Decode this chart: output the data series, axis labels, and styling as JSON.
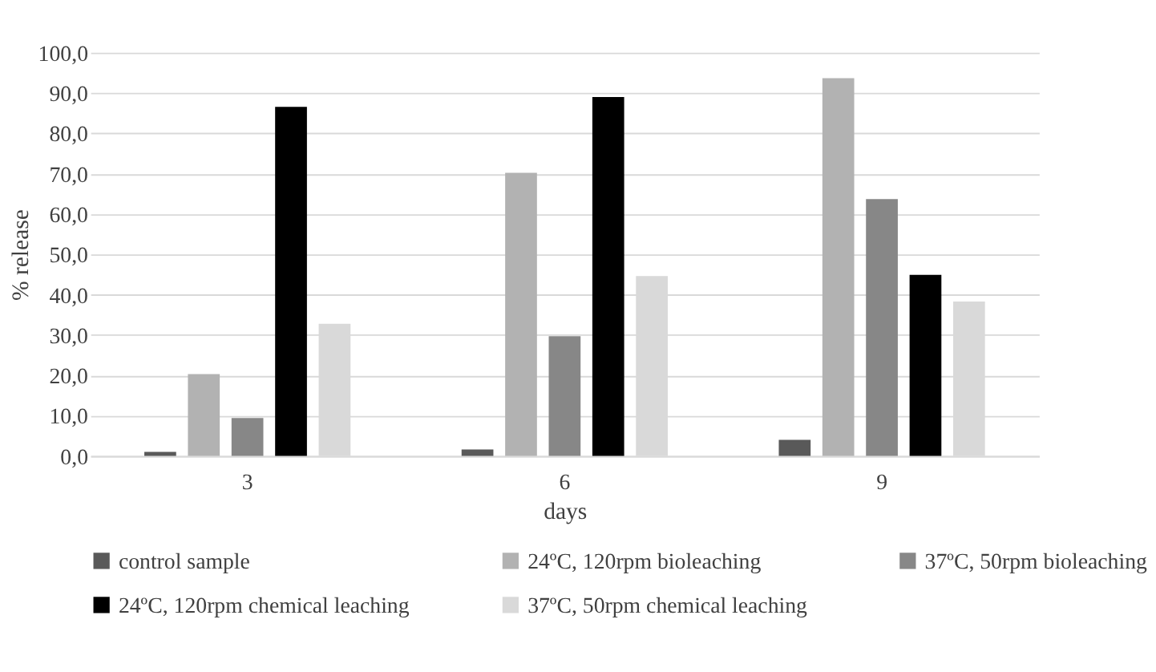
{
  "chart_data": {
    "type": "bar",
    "xlabel": "days",
    "ylabel": "% release",
    "categories": [
      "3",
      "6",
      "9"
    ],
    "series": [
      {
        "name": "control sample",
        "color": "#595959",
        "values": [
          1.0,
          1.6,
          4.0
        ]
      },
      {
        "name": "24ºC, 120rpm bioleaching",
        "color": "#b2b2b2",
        "values": [
          20.3,
          70.2,
          93.7
        ]
      },
      {
        "name": "37ºC, 50rpm bioleaching",
        "color": "#878787",
        "values": [
          9.4,
          29.7,
          63.7
        ]
      },
      {
        "name": "24ºC, 120rpm chemical leaching",
        "color": "#000000",
        "values": [
          86.6,
          89.0,
          44.9
        ]
      },
      {
        "name": "37ºC, 50rpm chemical leaching",
        "color": "#d9d9d9",
        "values": [
          32.8,
          44.6,
          38.3
        ]
      }
    ],
    "ylim": [
      0,
      100
    ],
    "yticks": [
      {
        "value": 0,
        "label": "0,0"
      },
      {
        "value": 10,
        "label": "10,0"
      },
      {
        "value": 20,
        "label": "20,0"
      },
      {
        "value": 30,
        "label": "30,0"
      },
      {
        "value": 40,
        "label": "40,0"
      },
      {
        "value": 50,
        "label": "50,0"
      },
      {
        "value": 60,
        "label": "60,0"
      },
      {
        "value": 70,
        "label": "70,0"
      },
      {
        "value": 80,
        "label": "80,0"
      },
      {
        "value": 90,
        "label": "90,0"
      },
      {
        "value": 100,
        "label": "100,0"
      }
    ],
    "grid": "y",
    "legend": "bottom"
  }
}
